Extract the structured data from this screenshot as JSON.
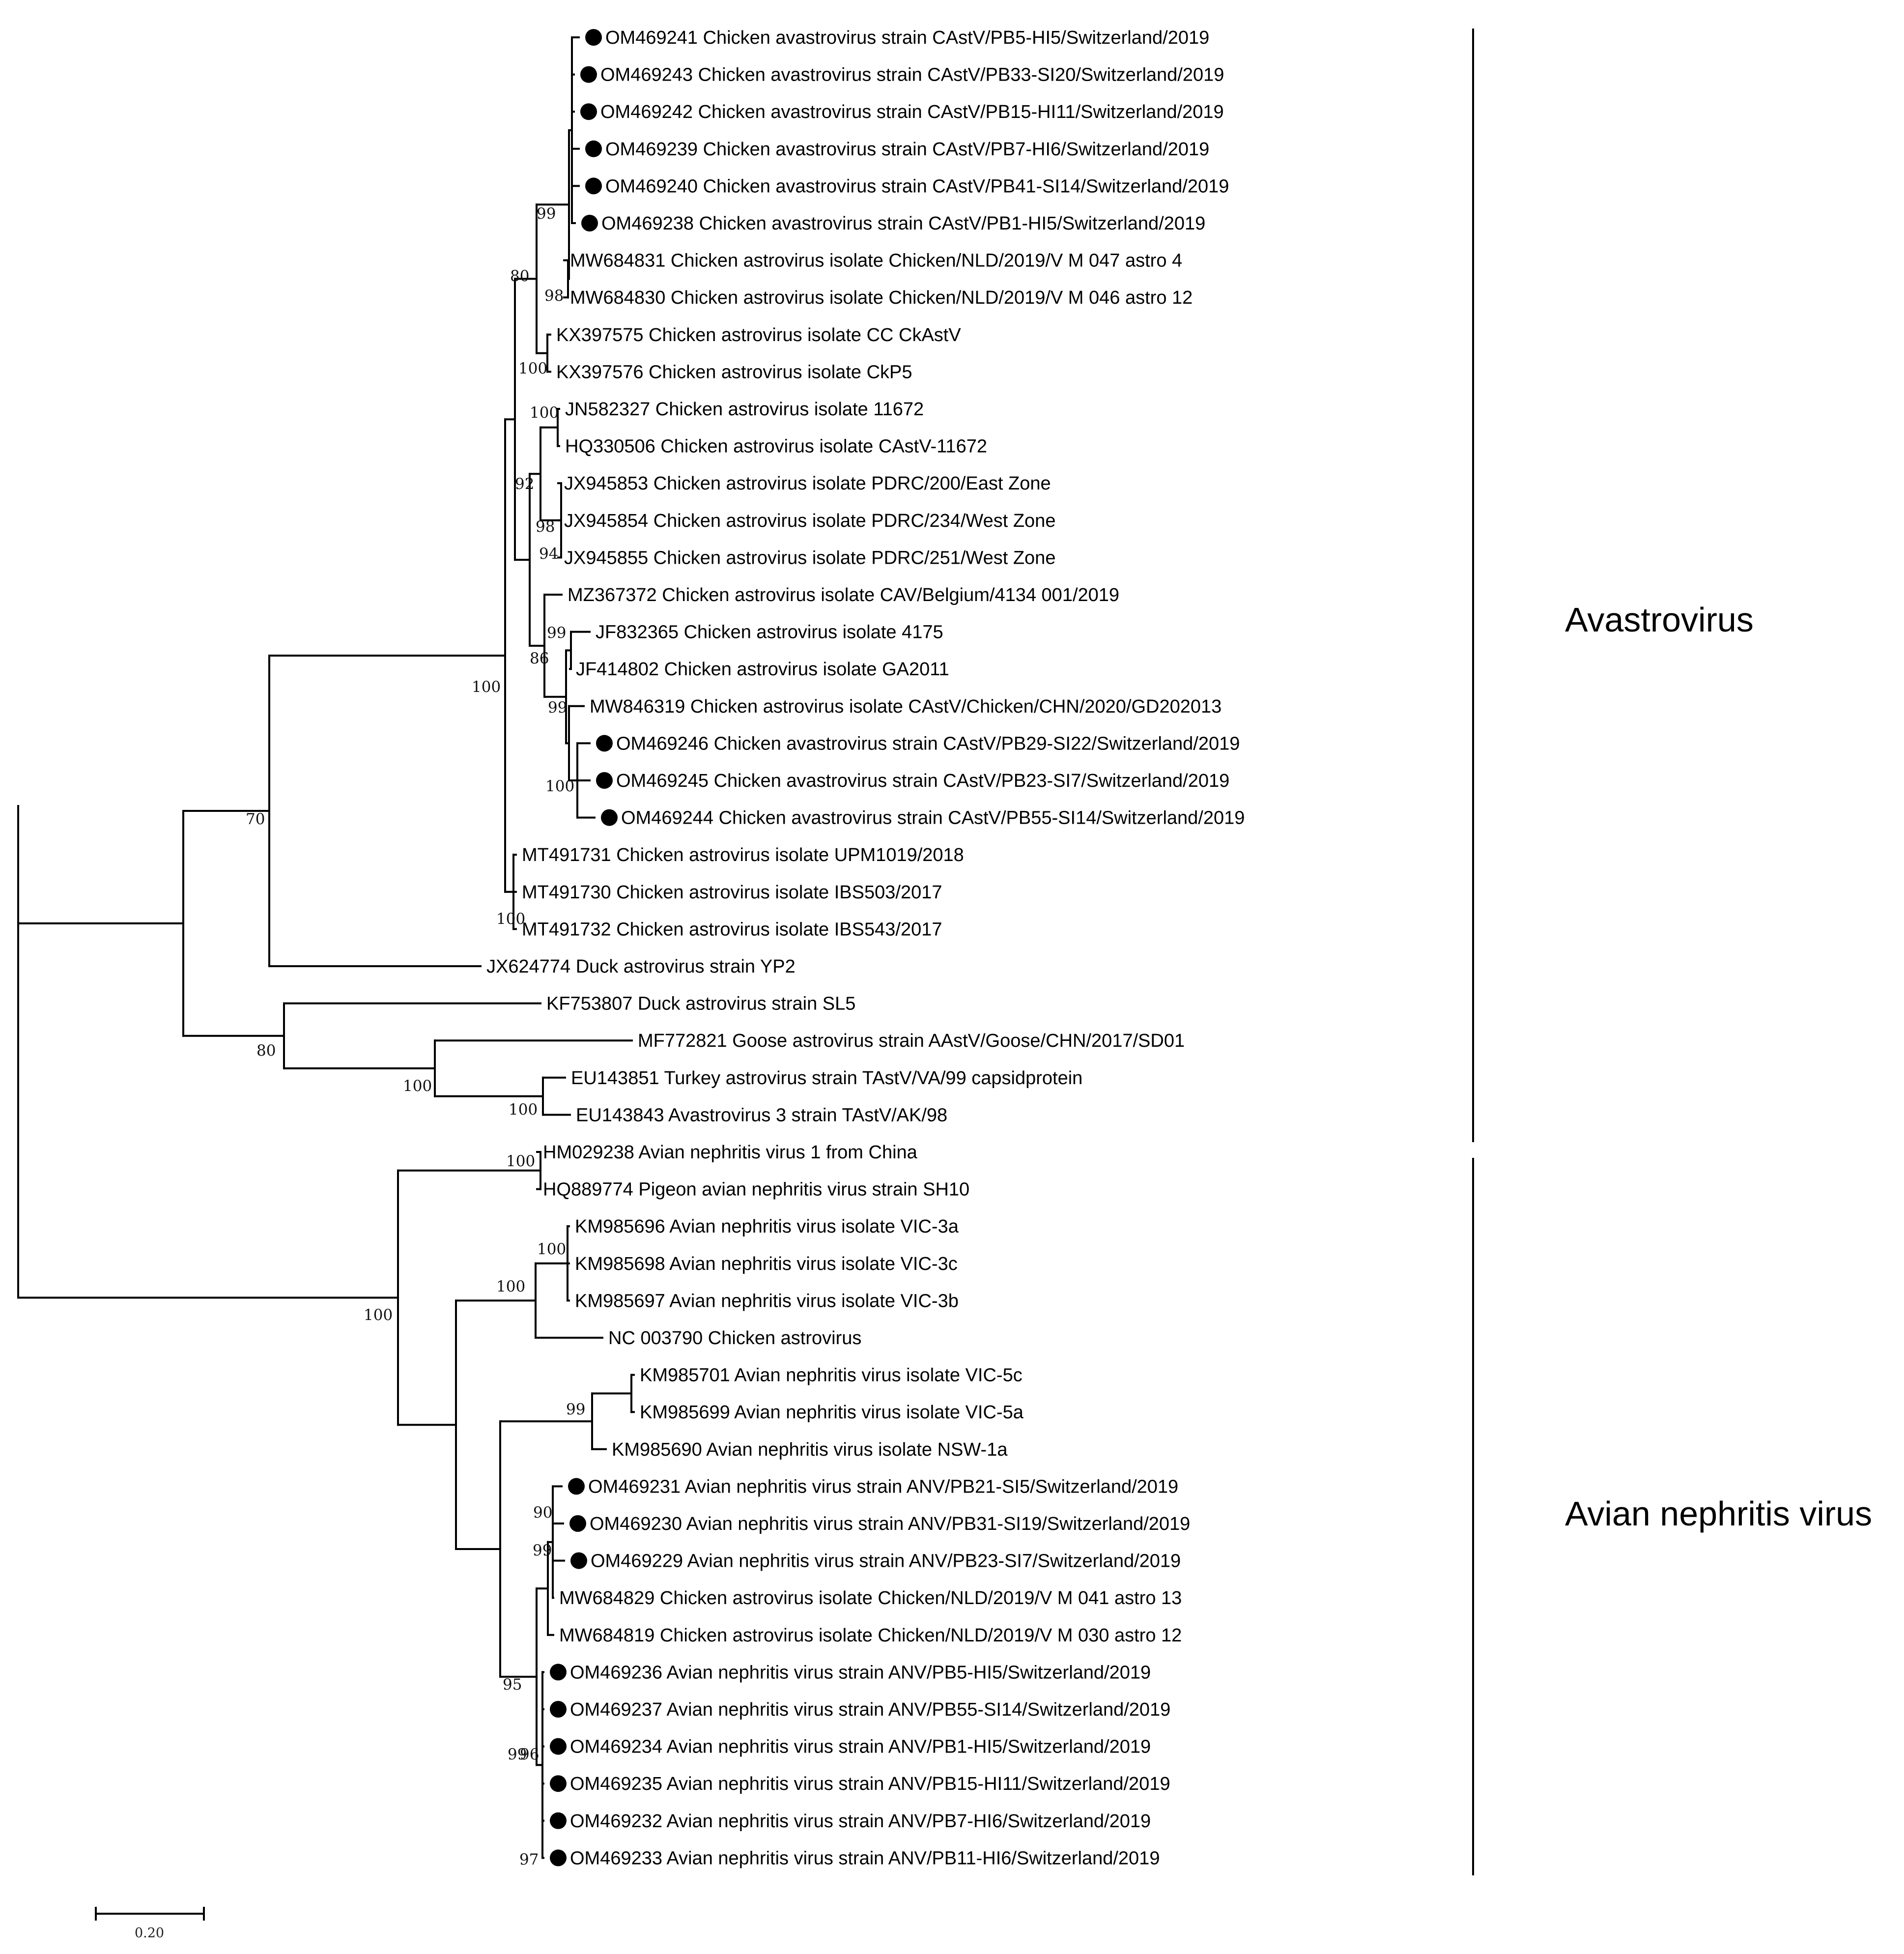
{
  "leaves": [
    {
      "id": "L1",
      "label": "OM469241 Chicken avastrovirus strain CAstV/PB5-HI5/Switzerland/2019",
      "sample": true
    },
    {
      "id": "L2",
      "label": "OM469243 Chicken avastrovirus strain CAstV/PB33-SI20/Switzerland/2019",
      "sample": true
    },
    {
      "id": "L3",
      "label": "OM469242 Chicken avastrovirus strain CAstV/PB15-HI11/Switzerland/2019",
      "sample": true
    },
    {
      "id": "L4",
      "label": "OM469239 Chicken avastrovirus strain CAstV/PB7-HI6/Switzerland/2019",
      "sample": true
    },
    {
      "id": "L5",
      "label": "OM469240 Chicken avastrovirus strain CAstV/PB41-SI14/Switzerland/2019",
      "sample": true
    },
    {
      "id": "L6",
      "label": "OM469238 Chicken avastrovirus strain CAstV/PB1-HI5/Switzerland/2019",
      "sample": true
    },
    {
      "id": "L7",
      "label": "MW684831 Chicken astrovirus isolate Chicken/NLD/2019/V M 047 astro 4",
      "sample": false
    },
    {
      "id": "L8",
      "label": "MW684830 Chicken astrovirus isolate Chicken/NLD/2019/V M 046 astro 12",
      "sample": false
    },
    {
      "id": "L9",
      "label": "KX397575 Chicken astrovirus isolate CC CkAstV",
      "sample": false
    },
    {
      "id": "L10",
      "label": "KX397576 Chicken astrovirus isolate CkP5",
      "sample": false
    },
    {
      "id": "L11",
      "label": "JN582327 Chicken astrovirus isolate 11672",
      "sample": false
    },
    {
      "id": "L12",
      "label": "HQ330506 Chicken astrovirus isolate CAstV-11672",
      "sample": false
    },
    {
      "id": "L13",
      "label": "JX945853 Chicken astrovirus isolate PDRC/200/East Zone",
      "sample": false
    },
    {
      "id": "L14",
      "label": "JX945854 Chicken astrovirus isolate PDRC/234/West Zone",
      "sample": false
    },
    {
      "id": "L15",
      "label": "JX945855 Chicken astrovirus isolate PDRC/251/West Zone",
      "sample": false
    },
    {
      "id": "L16",
      "label": "MZ367372 Chicken astrovirus isolate CAV/Belgium/4134 001/2019",
      "sample": false
    },
    {
      "id": "L17",
      "label": "JF832365 Chicken astrovirus isolate 4175",
      "sample": false
    },
    {
      "id": "L18",
      "label": "JF414802 Chicken astrovirus isolate GA2011",
      "sample": false
    },
    {
      "id": "L19",
      "label": "MW846319 Chicken astrovirus isolate CAstV/Chicken/CHN/2020/GD202013",
      "sample": false
    },
    {
      "id": "L20",
      "label": "OM469246 Chicken avastrovirus strain CAstV/PB29-SI22/Switzerland/2019",
      "sample": true
    },
    {
      "id": "L21",
      "label": "OM469245 Chicken avastrovirus strain CAstV/PB23-SI7/Switzerland/2019",
      "sample": true
    },
    {
      "id": "L22",
      "label": "OM469244 Chicken avastrovirus strain CAstV/PB55-SI14/Switzerland/2019",
      "sample": true
    },
    {
      "id": "L23",
      "label": "MT491731 Chicken astrovirus isolate UPM1019/2018",
      "sample": false
    },
    {
      "id": "L24",
      "label": "MT491730 Chicken astrovirus isolate IBS503/2017",
      "sample": false
    },
    {
      "id": "L25",
      "label": "MT491732 Chicken astrovirus isolate IBS543/2017",
      "sample": false
    },
    {
      "id": "L26",
      "label": "JX624774 Duck astrovirus strain YP2",
      "sample": false
    },
    {
      "id": "L27",
      "label": "KF753807 Duck astrovirus strain SL5",
      "sample": false
    },
    {
      "id": "L28",
      "label": "MF772821 Goose astrovirus strain AAstV/Goose/CHN/2017/SD01",
      "sample": false
    },
    {
      "id": "L29",
      "label": "EU143851 Turkey astrovirus strain TAstV/VA/99 capsidprotein",
      "sample": false
    },
    {
      "id": "L30",
      "label": "EU143843 Avastrovirus 3 strain TAstV/AK/98",
      "sample": false
    },
    {
      "id": "L31",
      "label": "HM029238 Avian nephritis virus 1 from China",
      "sample": false
    },
    {
      "id": "L32",
      "label": "HQ889774 Pigeon avian nephritis virus strain SH10",
      "sample": false
    },
    {
      "id": "L33",
      "label": "KM985696 Avian nephritis virus isolate VIC-3a",
      "sample": false
    },
    {
      "id": "L34",
      "label": "KM985698 Avian nephritis virus isolate VIC-3c",
      "sample": false
    },
    {
      "id": "L35",
      "label": "KM985697 Avian nephritis virus isolate VIC-3b",
      "sample": false
    },
    {
      "id": "L36",
      "label": "NC 003790 Chicken astrovirus",
      "sample": false
    },
    {
      "id": "L37",
      "label": "KM985701 Avian nephritis virus isolate VIC-5c",
      "sample": false
    },
    {
      "id": "L38",
      "label": "KM985699 Avian nephritis virus isolate VIC-5a",
      "sample": false
    },
    {
      "id": "L39",
      "label": "KM985690 Avian nephritis virus isolate NSW-1a",
      "sample": false
    },
    {
      "id": "L40",
      "label": "OM469231 Avian nephritis virus strain ANV/PB21-SI5/Switzerland/2019",
      "sample": true
    },
    {
      "id": "L41",
      "label": "OM469230 Avian nephritis virus strain ANV/PB31-SI19/Switzerland/2019",
      "sample": true
    },
    {
      "id": "L42",
      "label": "OM469229 Avian nephritis virus strain ANV/PB23-SI7/Switzerland/2019",
      "sample": true
    },
    {
      "id": "L43",
      "label": "MW684829 Chicken astrovirus isolate Chicken/NLD/2019/V M 041 astro 13",
      "sample": false
    },
    {
      "id": "L44",
      "label": "MW684819 Chicken astrovirus isolate Chicken/NLD/2019/V M 030 astro 12",
      "sample": false
    },
    {
      "id": "L45",
      "label": "OM469236 Avian nephritis virus strain ANV/PB5-HI5/Switzerland/2019",
      "sample": true
    },
    {
      "id": "L46",
      "label": "OM469237 Avian nephritis virus strain ANV/PB55-SI14/Switzerland/2019",
      "sample": true
    },
    {
      "id": "L47",
      "label": "OM469234 Avian nephritis virus strain ANV/PB1-HI5/Switzerland/2019",
      "sample": true
    },
    {
      "id": "L48",
      "label": "OM469235 Avian nephritis virus strain ANV/PB15-HI11/Switzerland/2019",
      "sample": true
    },
    {
      "id": "L49",
      "label": "OM469232 Avian nephritis virus strain ANV/PB7-HI6/Switzerland/2019",
      "sample": true
    },
    {
      "id": "L50",
      "label": "OM469233 Avian nephritis virus strain ANV/PB11-HI6/Switzerland/2019",
      "sample": true
    }
  ],
  "bootstrap_values": [
    "99",
    "80",
    "98",
    "100",
    "100",
    "92",
    "98",
    "94",
    "99",
    "86",
    "99",
    "100",
    "100",
    "100",
    "70",
    "80",
    "100",
    "100",
    "100",
    "100",
    "100",
    "100",
    "99",
    "90",
    "99",
    "95",
    "99",
    "96",
    "97"
  ],
  "clades": [
    {
      "id": "avastro",
      "label": "Avastrovirus"
    },
    {
      "id": "anv",
      "label": "Avian nephritis virus"
    }
  ],
  "scale_bar": {
    "value": 0.2,
    "label": "0.20"
  },
  "colors": {
    "branch": "#000000",
    "sample_marker": "#000000",
    "text": "#000000"
  }
}
